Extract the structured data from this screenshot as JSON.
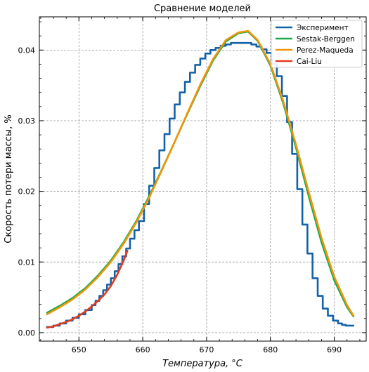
{
  "chart_data": {
    "type": "line",
    "title": "Сравнение моделей",
    "xlabel": "Температура, °C",
    "ylabel": "Скорость потери массы, %",
    "xlim": [
      643.8,
      695.0
    ],
    "ylim": [
      -0.0012,
      0.0447
    ],
    "xticks": [
      650,
      660,
      670,
      680,
      690
    ],
    "yticks": [
      0.0,
      0.01,
      0.02,
      0.03,
      0.04
    ],
    "xtick_labels": [
      "650",
      "660",
      "670",
      "680",
      "690"
    ],
    "ytick_labels": [
      "0.00",
      "0.01",
      "0.02",
      "0.03",
      "0.04"
    ],
    "grid": true,
    "legend_position": "top-right",
    "series": [
      {
        "name": "Эксперимент",
        "color": "#1462a8",
        "style": "step",
        "x": [
          645.0,
          646.0,
          647.0,
          648.0,
          649.0,
          650.0,
          651.0,
          652.0,
          652.6,
          653.2,
          653.8,
          654.4,
          655.0,
          655.6,
          656.2,
          656.8,
          657.4,
          658.0,
          658.7,
          659.4,
          660.2,
          661.0,
          661.8,
          662.6,
          663.4,
          664.2,
          665.0,
          665.8,
          666.6,
          667.4,
          668.2,
          669.0,
          669.8,
          670.6,
          671.4,
          672.2,
          673.0,
          673.8,
          674.6,
          675.4,
          676.2,
          677.0,
          677.8,
          678.6,
          679.4,
          680.2,
          681.0,
          681.8,
          682.6,
          683.4,
          684.2,
          685.0,
          685.8,
          686.6,
          687.4,
          688.2,
          689.0,
          689.8,
          690.6,
          691.2,
          691.8,
          692.4,
          693.0
        ],
        "y": [
          0.0008,
          0.001,
          0.0013,
          0.0017,
          0.0021,
          0.0026,
          0.0032,
          0.0039,
          0.0045,
          0.0052,
          0.006,
          0.0068,
          0.0077,
          0.0087,
          0.0097,
          0.0108,
          0.0119,
          0.0133,
          0.0145,
          0.0158,
          0.0182,
          0.0208,
          0.0233,
          0.0258,
          0.0281,
          0.0303,
          0.0323,
          0.034,
          0.0355,
          0.0368,
          0.0379,
          0.0388,
          0.0395,
          0.04,
          0.0403,
          0.0406,
          0.0408,
          0.041,
          0.041,
          0.041,
          0.041,
          0.0408,
          0.0405,
          0.0401,
          0.0396,
          0.038,
          0.0363,
          0.0335,
          0.0298,
          0.0253,
          0.0203,
          0.0153,
          0.0112,
          0.0077,
          0.0052,
          0.0034,
          0.0024,
          0.0017,
          0.0013,
          0.0011,
          0.001,
          0.001,
          0.001
        ]
      },
      {
        "name": "Sestak-Berggen",
        "color": "#1aaa4a",
        "style": "line",
        "x": [
          645,
          647,
          649,
          651,
          653,
          655,
          657,
          659,
          661,
          663,
          665,
          667,
          669,
          671,
          673,
          675,
          676.5,
          678,
          680,
          682,
          684,
          686,
          688,
          690,
          692,
          693
        ],
        "y": [
          0.0028,
          0.0038,
          0.0049,
          0.0063,
          0.0081,
          0.0102,
          0.0128,
          0.0158,
          0.0193,
          0.0231,
          0.027,
          0.031,
          0.0349,
          0.0385,
          0.0412,
          0.0424,
          0.0426,
          0.0413,
          0.0378,
          0.0325,
          0.0262,
          0.0193,
          0.0128,
          0.0074,
          0.0036,
          0.0023
        ]
      },
      {
        "name": "Perez-Maqueda",
        "color": "#f0960a",
        "style": "line",
        "x": [
          645,
          647,
          649,
          651,
          653,
          655,
          657,
          659,
          661,
          663,
          665,
          667,
          669,
          671,
          673,
          675,
          676.5,
          678,
          680,
          682,
          684,
          686,
          688,
          690,
          692,
          693
        ],
        "y": [
          0.0026,
          0.0036,
          0.0047,
          0.0061,
          0.0079,
          0.01,
          0.0126,
          0.0156,
          0.0191,
          0.023,
          0.027,
          0.0311,
          0.0351,
          0.0387,
          0.0414,
          0.0425,
          0.0427,
          0.0414,
          0.038,
          0.0328,
          0.0266,
          0.0199,
          0.0134,
          0.0079,
          0.0039,
          0.0024
        ]
      },
      {
        "name": "Cai-Liu",
        "color": "#e53a1c",
        "style": "line",
        "x": [
          645,
          646,
          647,
          648,
          649,
          650,
          651,
          652,
          653,
          654,
          655,
          656,
          657,
          657.6
        ],
        "y": [
          0.0007,
          0.0009,
          0.0012,
          0.0015,
          0.0019,
          0.0024,
          0.003,
          0.0037,
          0.0045,
          0.0054,
          0.0066,
          0.0082,
          0.0102,
          0.0116
        ]
      }
    ]
  }
}
